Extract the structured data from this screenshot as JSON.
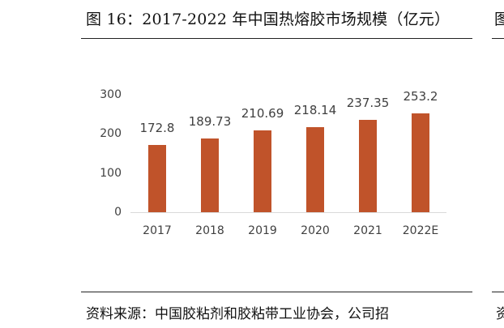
{
  "figure": {
    "title": "图 16：2017-2022 年中国热熔胶市场规模（亿元）",
    "title_right_fragment": "图",
    "source": "资料来源：中国胶粘剂和胶粘带工业协会，公司招",
    "source_right_fragment": "资"
  },
  "colors": {
    "bar": "#c0532a",
    "axis": "#d9d9d9",
    "text": "#404040"
  },
  "chart_data": {
    "type": "bar",
    "title": "2017-2022 年中国热熔胶市场规模（亿元）",
    "xlabel": "",
    "ylabel": "亿元",
    "categories": [
      "2017",
      "2018",
      "2019",
      "2020",
      "2021",
      "2022E"
    ],
    "values": [
      172.8,
      189.73,
      210.69,
      218.14,
      237.35,
      253.2
    ],
    "value_labels": [
      "172.8",
      "189.73",
      "210.69",
      "218.14",
      "237.35",
      "253.2"
    ],
    "yticks": [
      "0",
      "100",
      "200",
      "300"
    ],
    "ylim": [
      0,
      300
    ],
    "grid": false,
    "legend": null
  }
}
